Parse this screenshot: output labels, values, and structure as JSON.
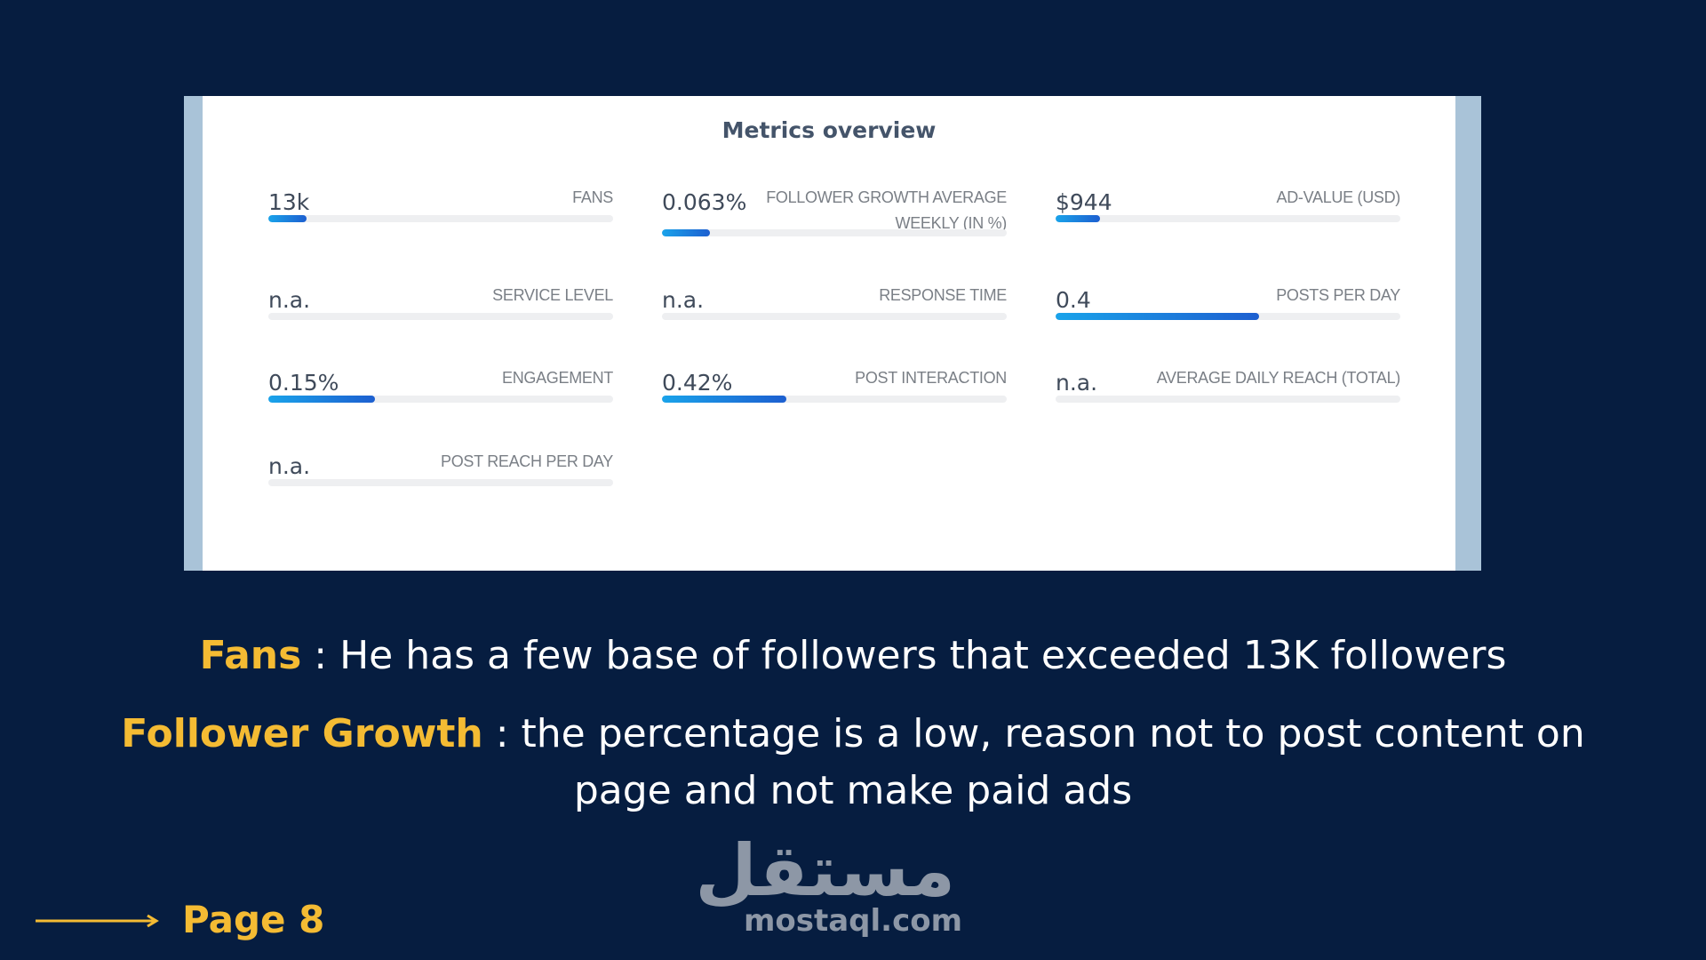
{
  "panel": {
    "title": "Metrics overview",
    "metrics": [
      {
        "value": "13k",
        "label": "FANS",
        "fill": 0.11
      },
      {
        "value": "0.063%",
        "label": "FOLLOWER GROWTH AVERAGE WEEKLY (IN %)",
        "fill": 0.14
      },
      {
        "value": "$944",
        "label": "AD-VALUE (USD)",
        "fill": 0.13
      },
      {
        "value": "n.a.",
        "label": "SERVICE LEVEL",
        "fill": 0
      },
      {
        "value": "n.a.",
        "label": "RESPONSE TIME",
        "fill": 0
      },
      {
        "value": "0.4",
        "label": "POSTS PER DAY",
        "fill": 0.59
      },
      {
        "value": "0.15%",
        "label": "ENGAGEMENT",
        "fill": 0.31
      },
      {
        "value": "0.42%",
        "label": "POST INTERACTION",
        "fill": 0.36
      },
      {
        "value": "n.a.",
        "label": "AVERAGE DAILY REACH (TOTAL)",
        "fill": 0
      },
      {
        "value": "n.a.",
        "label": "POST REACH PER DAY",
        "fill": 0
      }
    ]
  },
  "captions": {
    "fans_key": "Fans",
    "fans_text": " : He has a few base of followers that exceeded 13K followers",
    "growth_key": "Follower Growth",
    "growth_text_line1": " :  the percentage is a low, reason not to post content on",
    "growth_text_line2": "page and not make paid ads"
  },
  "footer": {
    "page_label": "Page 8",
    "logo_arabic": "مستقل",
    "logo_latin": "mostaql.com"
  },
  "colors": {
    "background": "#061d40",
    "accent": "#f4bb33",
    "panel_border": "#a9c3d8",
    "bar_fill": "#1d5fd0"
  }
}
